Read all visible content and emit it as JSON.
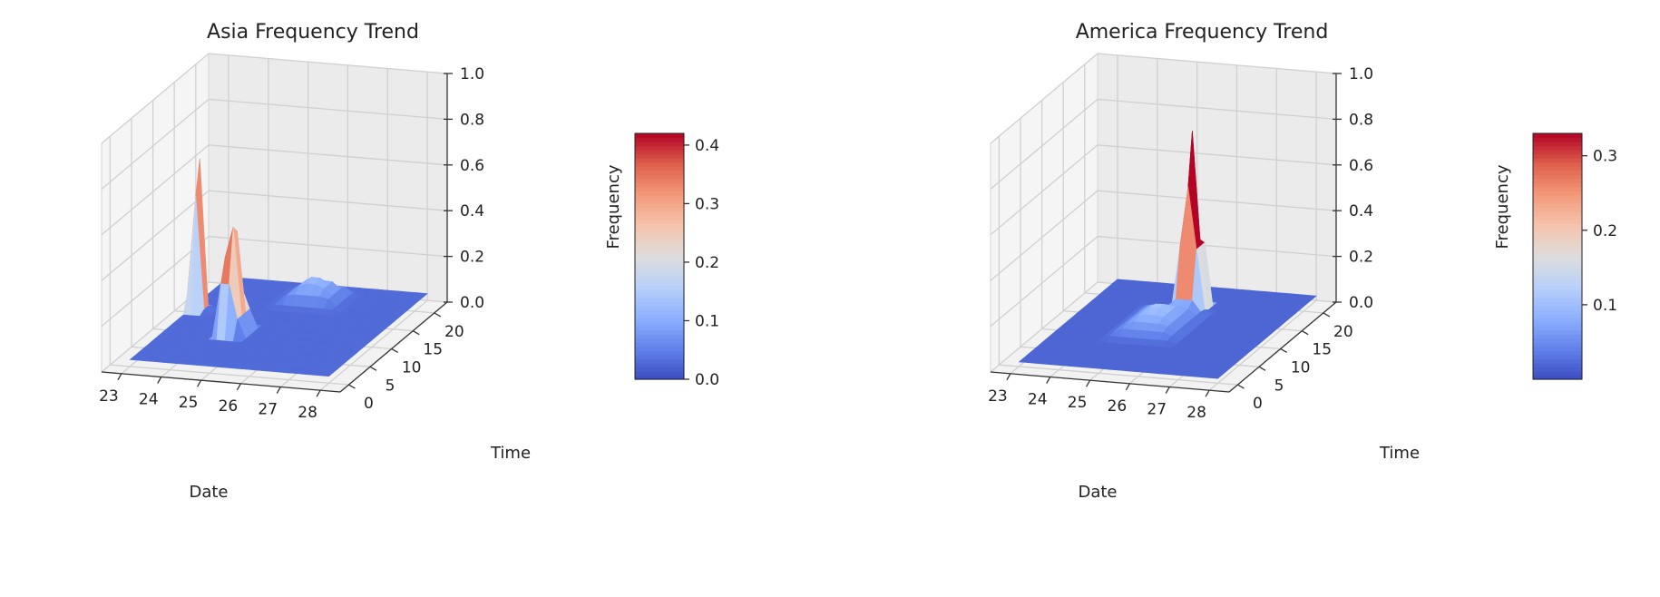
{
  "chart_data": [
    {
      "type": "surface3d",
      "title": "Asia Frequency Trend",
      "xlabel": "Date",
      "ylabel": "Time",
      "zlabel": "Frequency",
      "x_ticks": [
        "23",
        "24",
        "25",
        "26",
        "27",
        "28"
      ],
      "y_ticks": [
        "0",
        "5",
        "10",
        "15",
        "20"
      ],
      "z_ticks": [
        "0.0",
        "0.2",
        "0.4",
        "0.6",
        "0.8",
        "1.0"
      ],
      "xlim": [
        22.5,
        28.5
      ],
      "ylim": [
        -2,
        23
      ],
      "zlim": [
        0,
        1
      ],
      "colormap": "coolwarm",
      "colorbar": {
        "min": 0.0,
        "max": 0.42,
        "ticks": [
          "0.0",
          "0.1",
          "0.2",
          "0.3",
          "0.4"
        ]
      },
      "peaks": [
        {
          "x": 23.2,
          "y": 14,
          "z": 0.95,
          "spread_x": 0.22,
          "spread_y": 1.3
        },
        {
          "x": 24.6,
          "y": 9,
          "z": 0.62,
          "spread_x": 0.32,
          "spread_y": 2.2
        },
        {
          "x": 25.6,
          "y": 19,
          "z": 0.14,
          "spread_x": 0.8,
          "spread_y": 3.0
        }
      ],
      "base_level": 0.03
    },
    {
      "type": "surface3d",
      "title": "America Frequency Trend",
      "xlabel": "Date",
      "ylabel": "Time",
      "zlabel": "Frequency",
      "x_ticks": [
        "23",
        "24",
        "25",
        "26",
        "27",
        "28"
      ],
      "y_ticks": [
        "0",
        "5",
        "10",
        "15",
        "20"
      ],
      "z_ticks": [
        "0.0",
        "0.2",
        "0.4",
        "0.6",
        "0.8",
        "1.0"
      ],
      "xlim": [
        22.5,
        28.5
      ],
      "ylim": [
        -2,
        23
      ],
      "zlim": [
        0,
        1
      ],
      "colormap": "coolwarm",
      "colorbar": {
        "min": 0.0,
        "max": 0.33,
        "ticks": [
          "0.1",
          "0.2",
          "0.3"
        ]
      },
      "peaks": [
        {
          "x": 25.5,
          "y": 17,
          "z": 0.92,
          "spread_x": 0.3,
          "spread_y": 1.8
        },
        {
          "x": 25.2,
          "y": 12,
          "z": 0.12,
          "spread_x": 0.9,
          "spread_y": 5.0
        }
      ],
      "base_level": 0.02
    }
  ]
}
